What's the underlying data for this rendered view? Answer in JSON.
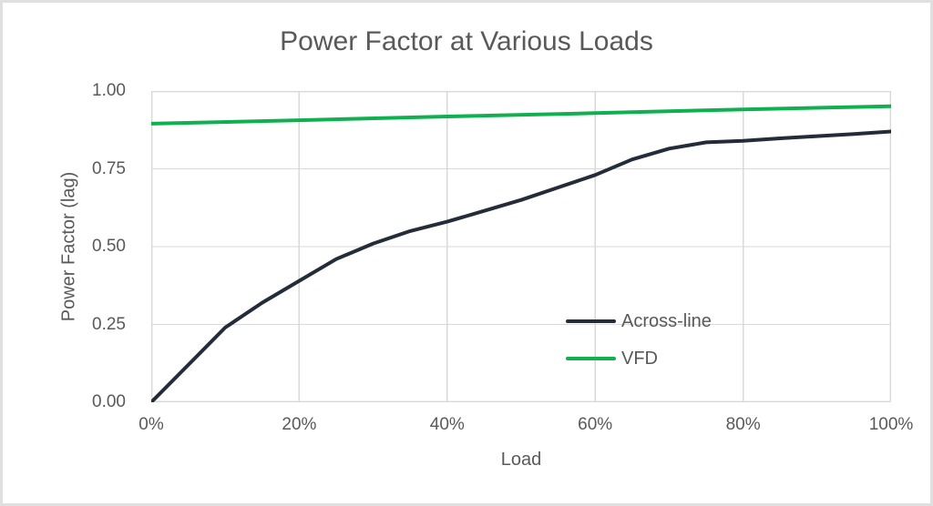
{
  "page": {
    "background": "#ffffff",
    "frame_border_color": "#e0e0e0"
  },
  "chart_data": {
    "type": "line",
    "title": "Power Factor at Various Loads",
    "xlabel": "Load",
    "ylabel": "Power Factor (lag)",
    "xlim": [
      0,
      100
    ],
    "ylim": [
      0,
      1
    ],
    "x_ticks": [
      0,
      20,
      40,
      60,
      80,
      100
    ],
    "x_tick_labels": [
      "0%",
      "20%",
      "40%",
      "60%",
      "80%",
      "100%"
    ],
    "y_ticks": [
      0,
      0.25,
      0.5,
      0.75,
      1
    ],
    "y_tick_labels": [
      "0.00",
      "0.25",
      "0.50",
      "0.75",
      "1.00"
    ],
    "grid": true,
    "legend_position": "inside-right",
    "series": [
      {
        "name": "Across-line",
        "color": "#232c38",
        "x": [
          0,
          5,
          10,
          15,
          20,
          25,
          30,
          35,
          40,
          45,
          50,
          55,
          60,
          65,
          70,
          75,
          80,
          85,
          90,
          95,
          100
        ],
        "y": [
          0.0,
          0.12,
          0.24,
          0.32,
          0.39,
          0.46,
          0.51,
          0.55,
          0.58,
          0.615,
          0.65,
          0.69,
          0.73,
          0.78,
          0.815,
          0.835,
          0.84,
          0.848,
          0.855,
          0.862,
          0.87
        ]
      },
      {
        "name": "VFD",
        "color": "#10b050",
        "x": [
          0,
          20,
          40,
          60,
          80,
          100
        ],
        "y": [
          0.895,
          0.906,
          0.918,
          0.929,
          0.941,
          0.951
        ]
      }
    ],
    "colors": {
      "grid": "#d9d9d9",
      "plot_border": "#d9d9d9",
      "text": "#595959"
    }
  }
}
